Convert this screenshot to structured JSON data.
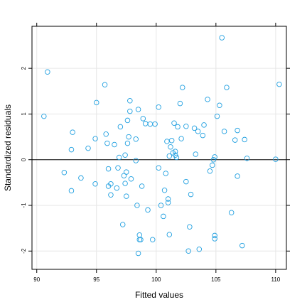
{
  "chart_data": {
    "type": "scatter",
    "xlabel": "Fitted values",
    "ylabel": "Standardized residuals",
    "xlim": [
      89.6,
      110.9
    ],
    "ylim": [
      -2.4,
      2.92
    ],
    "x_ticks": [
      90,
      95,
      100,
      105,
      110
    ],
    "y_ticks": [
      -2,
      -1,
      0,
      1,
      2
    ],
    "x_tick_labels": [
      "90",
      "95",
      "100",
      "105",
      "110"
    ],
    "y_tick_labels": [
      "-2",
      "-1",
      "0",
      "1",
      "2"
    ],
    "reference_line_y": 0,
    "grid": true,
    "colors": {
      "points": "#1f9fe0",
      "grid": "#e6e6e6",
      "reference_line": "#000000",
      "frame": "#000000"
    },
    "points": [
      [
        90.6,
        0.95
      ],
      [
        90.9,
        1.92
      ],
      [
        92.3,
        -0.28
      ],
      [
        92.9,
        -0.68
      ],
      [
        93.0,
        0.6
      ],
      [
        92.9,
        0.22
      ],
      [
        93.7,
        -0.4
      ],
      [
        94.3,
        0.25
      ],
      [
        94.9,
        0.46
      ],
      [
        94.9,
        -0.53
      ],
      [
        95.0,
        1.25
      ],
      [
        95.7,
        1.64
      ],
      [
        95.8,
        0.56
      ],
      [
        95.9,
        0.36
      ],
      [
        96.0,
        -0.2
      ],
      [
        96.0,
        -0.58
      ],
      [
        96.2,
        -0.77
      ],
      [
        96.2,
        -0.53
      ],
      [
        96.5,
        0.33
      ],
      [
        96.7,
        -0.62
      ],
      [
        96.8,
        -0.18
      ],
      [
        96.9,
        0.05
      ],
      [
        97.0,
        0.72
      ],
      [
        97.2,
        -1.42
      ],
      [
        97.3,
        -0.35
      ],
      [
        97.4,
        0.1
      ],
      [
        97.4,
        -0.52
      ],
      [
        97.5,
        -0.27
      ],
      [
        97.5,
        -0.8
      ],
      [
        97.6,
        0.86
      ],
      [
        97.6,
        0.36
      ],
      [
        97.7,
        0.5
      ],
      [
        97.8,
        1.06
      ],
      [
        97.8,
        1.29
      ],
      [
        97.9,
        -0.42
      ],
      [
        98.3,
        -0.02
      ],
      [
        98.3,
        0.45
      ],
      [
        98.4,
        -1.0
      ],
      [
        98.5,
        1.1
      ],
      [
        98.5,
        -2.05
      ],
      [
        98.6,
        -1.65
      ],
      [
        98.6,
        -1.75
      ],
      [
        98.7,
        -1.75
      ],
      [
        98.8,
        -0.58
      ],
      [
        98.9,
        0.9
      ],
      [
        99.1,
        0.79
      ],
      [
        99.3,
        -1.1
      ],
      [
        99.5,
        0.78
      ],
      [
        99.7,
        -1.75
      ],
      [
        99.9,
        0.78
      ],
      [
        100.2,
        -0.18
      ],
      [
        100.2,
        1.15
      ],
      [
        100.4,
        -1.0
      ],
      [
        100.6,
        -1.24
      ],
      [
        100.7,
        -0.67
      ],
      [
        100.8,
        -0.3
      ],
      [
        100.9,
        0.4
      ],
      [
        101.0,
        -0.86
      ],
      [
        101.0,
        -0.94
      ],
      [
        101.1,
        -1.64
      ],
      [
        101.1,
        0.08
      ],
      [
        101.2,
        0.28
      ],
      [
        101.3,
        0.42
      ],
      [
        101.4,
        0.15
      ],
      [
        101.5,
        0.8
      ],
      [
        101.6,
        0.1
      ],
      [
        101.6,
        0.18
      ],
      [
        101.7,
        0.05
      ],
      [
        101.8,
        0.72
      ],
      [
        102.0,
        1.23
      ],
      [
        102.1,
        0.46
      ],
      [
        102.2,
        1.58
      ],
      [
        102.5,
        0.73
      ],
      [
        102.5,
        -0.48
      ],
      [
        102.7,
        -2.0
      ],
      [
        102.8,
        -1.47
      ],
      [
        102.9,
        -0.76
      ],
      [
        103.2,
        0.69
      ],
      [
        103.3,
        0.12
      ],
      [
        103.5,
        0.62
      ],
      [
        103.6,
        -1.96
      ],
      [
        103.9,
        0.53
      ],
      [
        104.0,
        0.76
      ],
      [
        104.3,
        1.32
      ],
      [
        104.5,
        -0.25
      ],
      [
        104.7,
        -0.12
      ],
      [
        104.8,
        0.0
      ],
      [
        104.9,
        -1.66
      ],
      [
        104.9,
        0.06
      ],
      [
        104.9,
        -1.73
      ],
      [
        105.1,
        0.95
      ],
      [
        105.3,
        1.19
      ],
      [
        105.5,
        2.67
      ],
      [
        105.7,
        0.62
      ],
      [
        105.9,
        1.58
      ],
      [
        106.3,
        -1.16
      ],
      [
        106.6,
        0.43
      ],
      [
        106.8,
        0.64
      ],
      [
        106.8,
        -0.36
      ],
      [
        107.2,
        -1.88
      ],
      [
        107.4,
        0.44
      ],
      [
        107.6,
        0.03
      ],
      [
        110.0,
        0.01
      ],
      [
        110.3,
        1.65
      ]
    ]
  }
}
